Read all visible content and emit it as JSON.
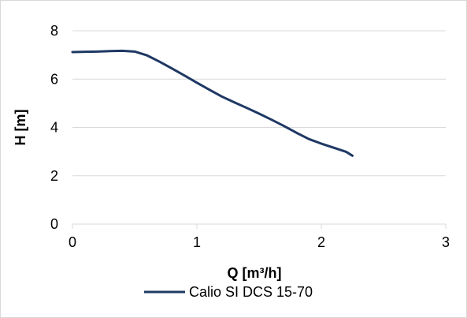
{
  "chart_data": {
    "type": "line",
    "title": "",
    "xlabel": "Q [m³/h]",
    "ylabel": "H [m]",
    "xlim": [
      0,
      3
    ],
    "ylim": [
      0,
      8
    ],
    "x_ticks": [
      0,
      1,
      2,
      3
    ],
    "y_ticks": [
      0,
      2,
      4,
      6,
      8
    ],
    "grid": "horizontal",
    "legend_position": "bottom",
    "series": [
      {
        "name": "Calio SI DCS 15-70",
        "color": "#1f3864",
        "x": [
          0,
          0.1,
          0.2,
          0.3,
          0.4,
          0.5,
          0.6,
          0.7,
          0.8,
          0.9,
          1.0,
          1.1,
          1.2,
          1.3,
          1.4,
          1.5,
          1.6,
          1.7,
          1.8,
          1.9,
          2.0,
          2.1,
          2.2,
          2.25
        ],
        "y": [
          7.12,
          7.13,
          7.14,
          7.16,
          7.17,
          7.14,
          6.98,
          6.72,
          6.44,
          6.15,
          5.85,
          5.56,
          5.28,
          5.04,
          4.81,
          4.57,
          4.32,
          4.06,
          3.78,
          3.52,
          3.33,
          3.16,
          2.99,
          2.83
        ]
      }
    ]
  }
}
